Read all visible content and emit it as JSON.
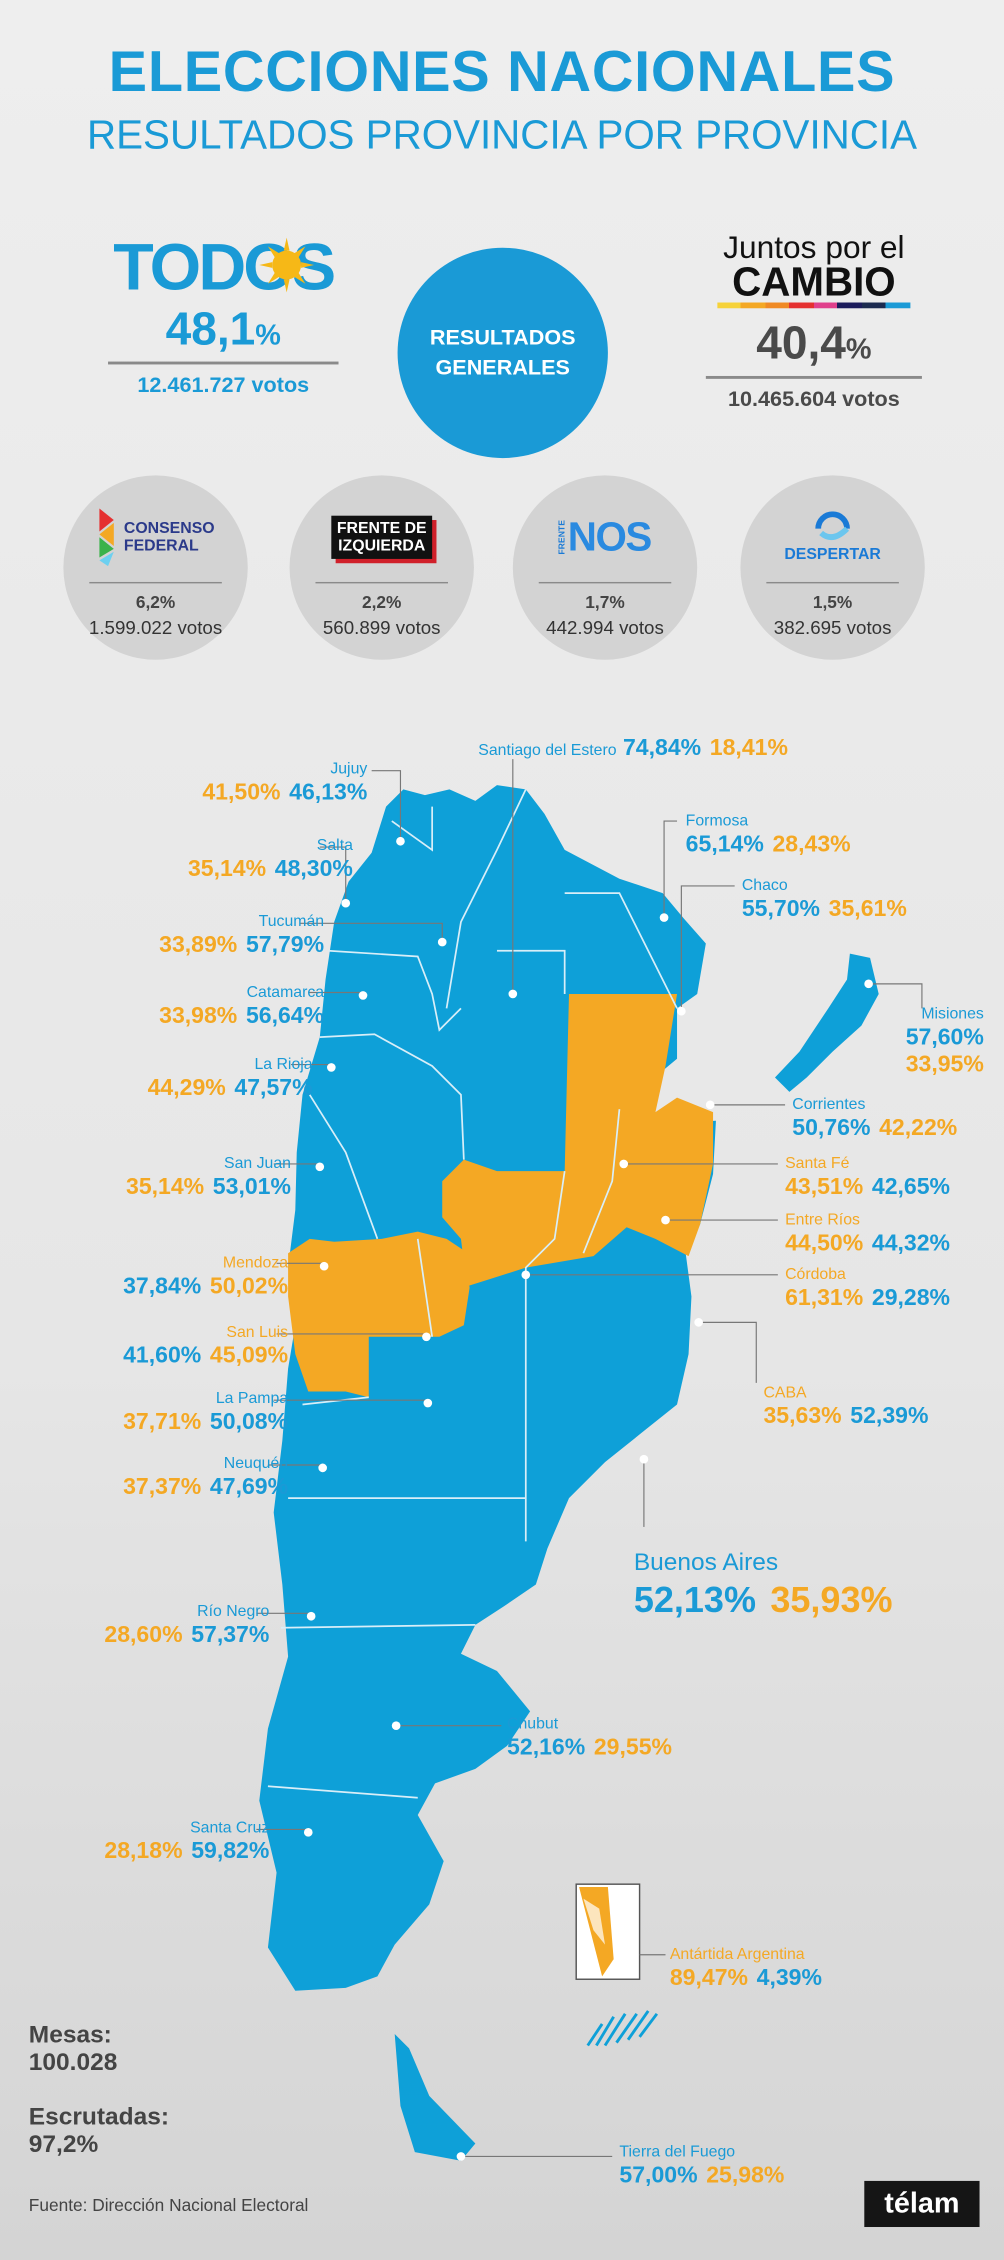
{
  "header": {
    "title": "ELECCIONES NACIONALES",
    "subtitle": "RESULTADOS PROVINCIA POR PROVINCIA"
  },
  "colors": {
    "todos": "#1a9ad6",
    "juntos": "#f4a824"
  },
  "main_parties": [
    {
      "logo": "TODOS",
      "pct": "48,1",
      "pct_sign": "%",
      "votes": "12.461.727 votos"
    },
    {
      "logo_line1": "Juntos por el",
      "logo_line2": "CAMBIO",
      "pct": "40,4",
      "pct_sign": "%",
      "votes": "10.465.604 votos"
    }
  ],
  "center_label": {
    "line1": "RESULTADOS",
    "line2": "GENERALES"
  },
  "minor_parties": [
    {
      "logo_line1": "CONSENSO",
      "logo_line2": "FEDERAL",
      "pct": "6,2%",
      "votes": "1.599.022 votos"
    },
    {
      "logo_line1": "FRENTE DE",
      "logo_line2": "IZQUIERDA",
      "pct": "2,2%",
      "votes": "560.899 votos"
    },
    {
      "logo_small": "FRENTE",
      "logo": "NOS",
      "pct": "1,7%",
      "votes": "442.994 votos"
    },
    {
      "logo": "DESPERTAR",
      "pct": "1,5%",
      "votes": "382.695 votos"
    }
  ],
  "provinces": {
    "santiago": {
      "name": "Santiago del Estero",
      "todos": "74,84%",
      "juntos": "18,41%"
    },
    "jujuy": {
      "name": "Jujuy",
      "todos": "46,13%",
      "juntos": "41,50%"
    },
    "salta": {
      "name": "Salta",
      "todos": "48,30%",
      "juntos": "35,14%"
    },
    "tucuman": {
      "name": "Tucumán",
      "todos": "57,79%",
      "juntos": "33,89%"
    },
    "catamarca": {
      "name": "Catamarca",
      "todos": "56,64%",
      "juntos": "33,98%"
    },
    "larioja": {
      "name": "La Rioja",
      "todos": "47,57%",
      "juntos": "44,29%"
    },
    "sanjuan": {
      "name": "San Juan",
      "todos": "53,01%",
      "juntos": "35,14%"
    },
    "mendoza": {
      "name": "Mendoza",
      "todos": "37,84%",
      "juntos": "50,02%"
    },
    "sanluis": {
      "name": "San Luis",
      "todos": "41,60%",
      "juntos": "45,09%"
    },
    "lapampa": {
      "name": "La Pampa",
      "todos": "50,08%",
      "juntos": "37,71%"
    },
    "neuquen": {
      "name": "Neuquén",
      "todos": "47,69%",
      "juntos": "37,37%"
    },
    "rionegro": {
      "name": "Río Negro",
      "todos": "57,37%",
      "juntos": "28,60%"
    },
    "santacruz": {
      "name": "Santa Cruz",
      "todos": "59,82%",
      "juntos": "28,18%"
    },
    "formosa": {
      "name": "Formosa",
      "todos": "65,14%",
      "juntos": "28,43%"
    },
    "chaco": {
      "name": "Chaco",
      "todos": "55,70%",
      "juntos": "35,61%"
    },
    "misiones": {
      "name": "Misiones",
      "todos": "57,60%",
      "juntos": "33,95%"
    },
    "corrientes": {
      "name": "Corrientes",
      "todos": "50,76%",
      "juntos": "42,22%"
    },
    "santafe": {
      "name": "Santa Fé",
      "todos": "42,65%",
      "juntos": "43,51%"
    },
    "entrerios": {
      "name": "Entre Ríos",
      "todos": "44,32%",
      "juntos": "44,50%"
    },
    "cordoba": {
      "name": "Córdoba",
      "todos": "29,28%",
      "juntos": "61,31%"
    },
    "caba": {
      "name": "CABA",
      "todos": "52,39%",
      "juntos": "35,63%"
    },
    "buenosaires": {
      "name": "Buenos Aires",
      "todos": "52,13%",
      "juntos": "35,93%"
    },
    "chubut": {
      "name": "Chubut",
      "todos": "52,16%",
      "juntos": "29,55%"
    },
    "antartida": {
      "name": "Antártida Argentina",
      "todos": "4,39%",
      "juntos": "89,47%"
    },
    "tdf": {
      "name": "Tierra del Fuego",
      "todos": "57,00%",
      "juntos": "25,98%"
    }
  },
  "footer": {
    "mesas_label": "Mesas:",
    "mesas_value": "100.028",
    "escrutadas_label": "Escrutadas:",
    "escrutadas_value": "97,2%",
    "source": "Fuente: Dirección Nacional Electoral",
    "brand": "télam"
  }
}
